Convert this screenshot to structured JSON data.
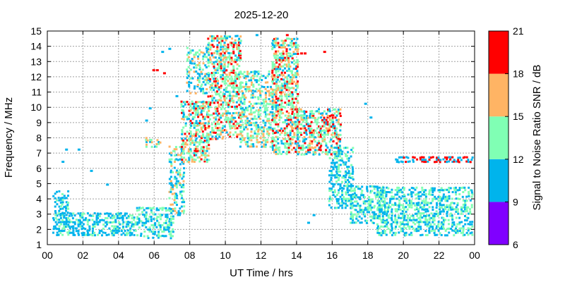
{
  "chart_data": {
    "type": "heatmap",
    "title": "2025-12-20",
    "xlabel": "UT Time / hrs",
    "ylabel": "Frequency / MHz",
    "colorbar_label": "Signal to Noise Ratio SNR / dB",
    "xlim": [
      0,
      24
    ],
    "ylim": [
      1,
      15
    ],
    "x_ticks": [
      "00",
      "02",
      "04",
      "06",
      "08",
      "10",
      "12",
      "14",
      "16",
      "18",
      "20",
      "22",
      "00"
    ],
    "y_ticks": [
      "1",
      "2",
      "3",
      "4",
      "5",
      "6",
      "7",
      "8",
      "9",
      "10",
      "11",
      "12",
      "13",
      "14",
      "15"
    ],
    "grid": true,
    "colorbar": {
      "range": [
        6,
        21
      ],
      "ticks": [
        "6",
        "9",
        "12",
        "15",
        "18",
        "21"
      ],
      "bands": [
        {
          "from": 6,
          "to": 9,
          "color": "#8000ff"
        },
        {
          "from": 9,
          "to": 12,
          "color": "#00b4ec"
        },
        {
          "from": 12,
          "to": 15,
          "color": "#80ffb4"
        },
        {
          "from": 15,
          "to": 18,
          "color": "#ffb464"
        },
        {
          "from": 18,
          "to": 21,
          "color": "#ff0000"
        }
      ]
    },
    "regions": [
      {
        "x": [
          0.3,
          5.0
        ],
        "y": [
          1.7,
          3.2
        ],
        "density": 0.55,
        "snr": [
          9,
          11,
          12
        ]
      },
      {
        "x": [
          0.3,
          1.2
        ],
        "y": [
          3.0,
          4.6
        ],
        "density": 0.45,
        "snr": [
          9,
          11,
          12
        ]
      },
      {
        "x": [
          5.0,
          7.0
        ],
        "y": [
          1.5,
          3.5
        ],
        "density": 0.45,
        "snr": [
          9,
          11,
          12,
          13
        ]
      },
      {
        "x": [
          6.8,
          7.6
        ],
        "y": [
          3.0,
          7.5
        ],
        "density": 0.45,
        "snr": [
          9,
          11,
          13,
          16
        ]
      },
      {
        "x": [
          7.5,
          9.0
        ],
        "y": [
          6.5,
          10.5
        ],
        "density": 0.55,
        "snr": [
          10,
          12,
          13,
          16,
          19
        ]
      },
      {
        "x": [
          7.8,
          9.0
        ],
        "y": [
          11.0,
          14.0
        ],
        "density": 0.35,
        "snr": [
          9,
          11,
          13,
          16
        ]
      },
      {
        "x": [
          9.0,
          10.8
        ],
        "y": [
          8.0,
          14.8
        ],
        "density": 0.5,
        "snr": [
          10,
          12,
          13,
          16,
          19
        ]
      },
      {
        "x": [
          10.8,
          12.6
        ],
        "y": [
          7.5,
          12.5
        ],
        "density": 0.45,
        "snr": [
          10,
          12,
          13,
          16
        ]
      },
      {
        "x": [
          12.6,
          14.0
        ],
        "y": [
          7.0,
          14.6
        ],
        "density": 0.55,
        "snr": [
          10,
          12,
          13,
          16,
          19
        ]
      },
      {
        "x": [
          14.0,
          16.5
        ],
        "y": [
          7.0,
          10.0
        ],
        "density": 0.55,
        "snr": [
          10,
          12,
          13,
          16,
          19
        ]
      },
      {
        "x": [
          15.8,
          17.2
        ],
        "y": [
          3.5,
          7.5
        ],
        "density": 0.45,
        "snr": [
          9,
          11,
          12
        ]
      },
      {
        "x": [
          17.0,
          19.0
        ],
        "y": [
          2.5,
          5.0
        ],
        "density": 0.45,
        "snr": [
          9,
          11,
          12,
          14
        ]
      },
      {
        "x": [
          18.5,
          24.0
        ],
        "y": [
          1.7,
          4.8
        ],
        "density": 0.45,
        "snr": [
          9,
          11,
          12,
          14
        ]
      },
      {
        "x": [
          19.5,
          24.0
        ],
        "y": [
          6.5,
          6.9
        ],
        "density": 0.55,
        "snr": [
          10,
          11,
          19,
          20
        ]
      },
      {
        "x": [
          5.5,
          6.3
        ],
        "y": [
          7.5,
          8.2
        ],
        "density": 0.4,
        "snr": [
          10,
          13,
          17
        ]
      }
    ],
    "points": [
      {
        "x": 5.9,
        "y": 12.5,
        "snr": 20
      },
      {
        "x": 6.1,
        "y": 12.5,
        "snr": 20
      },
      {
        "x": 6.5,
        "y": 12.3,
        "snr": 20
      },
      {
        "x": 14.2,
        "y": 13.6,
        "snr": 20
      },
      {
        "x": 14.4,
        "y": 13.6,
        "snr": 20
      },
      {
        "x": 15.5,
        "y": 13.7,
        "snr": 20
      },
      {
        "x": 13.4,
        "y": 14.8,
        "snr": 20
      },
      {
        "x": 10.0,
        "y": 14.6,
        "snr": 11
      },
      {
        "x": 11.7,
        "y": 14.8,
        "snr": 11
      },
      {
        "x": 6.4,
        "y": 13.7,
        "snr": 10
      },
      {
        "x": 6.8,
        "y": 13.9,
        "snr": 10
      },
      {
        "x": 1.0,
        "y": 7.3,
        "snr": 10
      },
      {
        "x": 1.7,
        "y": 7.3,
        "snr": 10
      },
      {
        "x": 0.8,
        "y": 6.5,
        "snr": 10
      },
      {
        "x": 2.4,
        "y": 5.9,
        "snr": 10
      },
      {
        "x": 3.3,
        "y": 5.0,
        "snr": 10
      },
      {
        "x": 5.7,
        "y": 10.0,
        "snr": 10
      },
      {
        "x": 5.5,
        "y": 9.2,
        "snr": 10
      },
      {
        "x": 7.2,
        "y": 10.8,
        "snr": 10
      },
      {
        "x": 18.1,
        "y": 9.4,
        "snr": 10
      },
      {
        "x": 17.8,
        "y": 10.3,
        "snr": 10
      },
      {
        "x": 14.9,
        "y": 3.0,
        "snr": 10
      },
      {
        "x": 14.6,
        "y": 2.5,
        "snr": 10
      }
    ]
  }
}
